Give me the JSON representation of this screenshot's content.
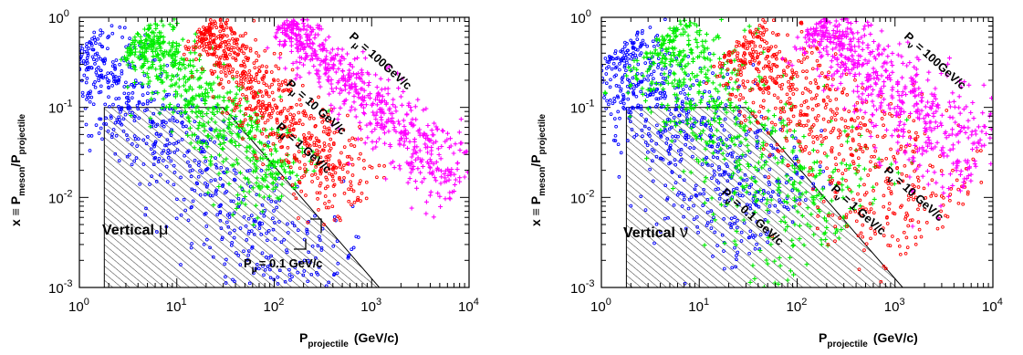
{
  "chart_data": [
    {
      "type": "scatter",
      "title": "",
      "xlabel": {
        "main": "P",
        "sub": "projectile",
        "unit": "(GeV/c)"
      },
      "ylabel": {
        "prefix": "x ≡ P",
        "sub1": "meson",
        "mid": "/P",
        "sub2": "projectile"
      },
      "xscale": "log",
      "yscale": "log",
      "xlim": [
        1,
        10000
      ],
      "ylim": [
        0.001,
        1
      ],
      "x_ticks": [
        {
          "base": "10",
          "exp": "0"
        },
        {
          "base": "10",
          "exp": "1"
        },
        {
          "base": "10",
          "exp": "2"
        },
        {
          "base": "10",
          "exp": "3"
        },
        {
          "base": "10",
          "exp": "4"
        }
      ],
      "y_ticks": [
        {
          "base": "10",
          "exp": "-3"
        },
        {
          "base": "10",
          "exp": "-2"
        },
        {
          "base": "10",
          "exp": "-1"
        },
        {
          "base": "10",
          "exp": "0"
        }
      ],
      "region": {
        "label_text": "Vertical",
        "label_symbol": "μ",
        "x_min": 1.8,
        "y_max": 0.1,
        "diag_from": [
          30,
          0.1
        ],
        "diag_to": [
          1200,
          0.001
        ]
      },
      "series": [
        {
          "color": "#0000ff",
          "marker": "circle",
          "band": {
            "x": [
              1,
              300
            ],
            "y": [
              0.45,
              0.0008
            ],
            "spread": 0.3
          },
          "annotation": {
            "label": "P",
            "sub": "μ",
            "value": "= 0.1 GeV/c"
          }
        },
        {
          "color": "#00ee00",
          "marker": "plus",
          "band": {
            "x": [
              4,
              150
            ],
            "y": [
              0.6,
              0.012
            ],
            "spread": 0.22
          },
          "annotation": {
            "label": "P",
            "sub": "μ",
            "value": "= 1 GeV/c"
          }
        },
        {
          "color": "#ff0000",
          "marker": "circle",
          "band": {
            "x": [
              18,
              800
            ],
            "y": [
              0.7,
              0.009
            ],
            "spread": 0.18
          },
          "annotation": {
            "label": "P",
            "sub": "μ",
            "value": "= 10 GeV/c"
          }
        },
        {
          "color": "#ff00ff",
          "marker": "plus",
          "band": {
            "x": [
              130,
              9000
            ],
            "y": [
              0.85,
              0.012
            ],
            "spread": 0.16
          },
          "annotation": {
            "label": "P",
            "sub": "μ",
            "value": "= 100GeV/c"
          }
        }
      ]
    },
    {
      "type": "scatter",
      "title": "",
      "xlabel": {
        "main": "P",
        "sub": "projectile",
        "unit": "(GeV/c)"
      },
      "ylabel": {
        "prefix": "x ≡ P",
        "sub1": "meson",
        "mid": "/P",
        "sub2": "projectile"
      },
      "xscale": "log",
      "yscale": "log",
      "xlim": [
        1,
        10000
      ],
      "ylim": [
        0.001,
        1
      ],
      "x_ticks": [
        {
          "base": "10",
          "exp": "0"
        },
        {
          "base": "10",
          "exp": "1"
        },
        {
          "base": "10",
          "exp": "2"
        },
        {
          "base": "10",
          "exp": "3"
        },
        {
          "base": "10",
          "exp": "4"
        }
      ],
      "y_ticks": [
        {
          "base": "10",
          "exp": "-3"
        },
        {
          "base": "10",
          "exp": "-2"
        },
        {
          "base": "10",
          "exp": "-1"
        },
        {
          "base": "10",
          "exp": "0"
        }
      ],
      "region": {
        "label_text": "Vertical",
        "label_symbol": "ν",
        "x_min": 1.8,
        "y_max": 0.1,
        "diag_from": [
          30,
          0.1
        ],
        "diag_to": [
          1200,
          0.001
        ]
      },
      "series": [
        {
          "color": "#0000ff",
          "marker": "circle",
          "band": {
            "x": [
              1.4,
              60
            ],
            "y": [
              0.4,
              0.004
            ],
            "spread": 0.35
          },
          "annotation": {
            "label": "P",
            "sub": "ν",
            "value": "= 0.1 GeV/c"
          }
        },
        {
          "color": "#00ee00",
          "marker": "plus",
          "band": {
            "x": [
              4,
              250
            ],
            "y": [
              0.55,
              0.003
            ],
            "spread": 0.4
          },
          "annotation": {
            "label": "P",
            "sub": "ν",
            "value": "= 1 GeV/c"
          }
        },
        {
          "color": "#ff0000",
          "marker": "circle",
          "band": {
            "x": [
              25,
              2500
            ],
            "y": [
              0.5,
              0.004
            ],
            "spread": 0.35
          },
          "annotation": {
            "label": "P",
            "sub": "ν",
            "value": "= 10 GeV/c"
          }
        },
        {
          "color": "#ff00ff",
          "marker": "plus",
          "band": {
            "x": [
              150,
              9000
            ],
            "y": [
              0.8,
              0.02
            ],
            "spread": 0.25
          },
          "annotation": {
            "label": "P",
            "sub": "ν",
            "value": "= 100GeV/c"
          }
        }
      ]
    }
  ]
}
